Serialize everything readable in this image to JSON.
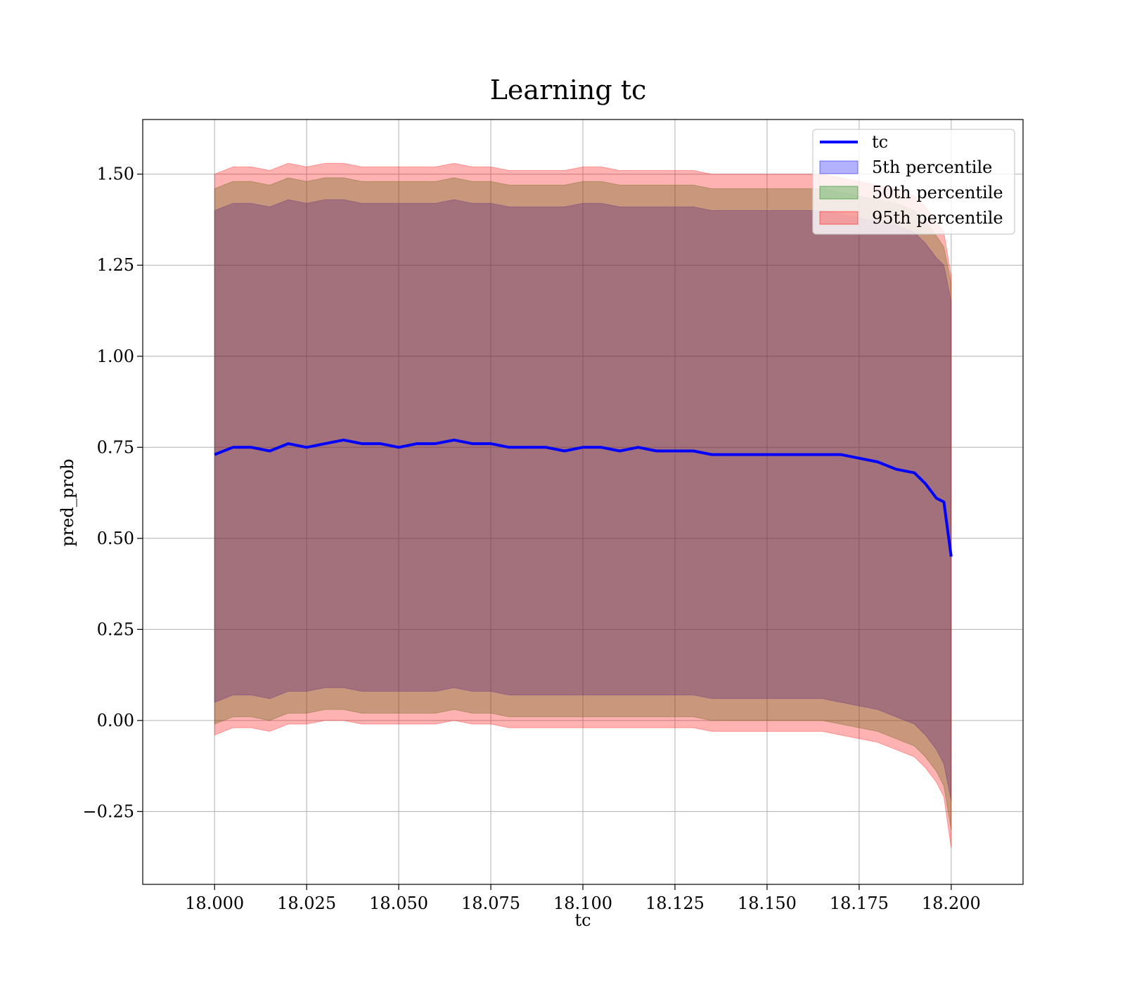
{
  "chart_data": {
    "type": "line",
    "title": "Learning tc",
    "xlabel": "tc",
    "ylabel": "pred_prob",
    "xlim": [
      17.9805,
      18.2195
    ],
    "ylim": [
      -0.45,
      1.65
    ],
    "grid": true,
    "legend_position": "top-right",
    "x_ticks": [
      18.0,
      18.025,
      18.05,
      18.075,
      18.1,
      18.125,
      18.15,
      18.175,
      18.2
    ],
    "x_tick_labels": [
      "18.000",
      "18.025",
      "18.050",
      "18.075",
      "18.100",
      "18.125",
      "18.150",
      "18.175",
      "18.200"
    ],
    "y_ticks": [
      -0.25,
      0.0,
      0.25,
      0.5,
      0.75,
      1.0,
      1.25,
      1.5
    ],
    "y_tick_labels": [
      "−0.25",
      "0.00",
      "0.25",
      "0.50",
      "0.75",
      "1.00",
      "1.25",
      "1.50"
    ],
    "x": [
      18.0,
      18.005,
      18.01,
      18.015,
      18.02,
      18.025,
      18.03,
      18.035,
      18.04,
      18.045,
      18.05,
      18.055,
      18.06,
      18.065,
      18.07,
      18.075,
      18.08,
      18.085,
      18.09,
      18.095,
      18.1,
      18.105,
      18.11,
      18.115,
      18.12,
      18.125,
      18.13,
      18.135,
      18.14,
      18.145,
      18.15,
      18.155,
      18.16,
      18.165,
      18.17,
      18.175,
      18.18,
      18.185,
      18.19,
      18.193,
      18.196,
      18.198,
      18.2
    ],
    "series": [
      {
        "name": "tc",
        "kind": "line",
        "color": "#0000ff",
        "values": [
          0.73,
          0.75,
          0.75,
          0.74,
          0.76,
          0.75,
          0.76,
          0.77,
          0.76,
          0.76,
          0.75,
          0.76,
          0.76,
          0.77,
          0.76,
          0.76,
          0.75,
          0.75,
          0.75,
          0.74,
          0.75,
          0.75,
          0.74,
          0.75,
          0.74,
          0.74,
          0.74,
          0.73,
          0.73,
          0.73,
          0.73,
          0.73,
          0.73,
          0.73,
          0.73,
          0.72,
          0.71,
          0.69,
          0.68,
          0.65,
          0.61,
          0.6,
          0.45
        ]
      },
      {
        "name": "5th percentile",
        "kind": "band",
        "color": "#0000ff",
        "opacity": 0.3,
        "upper": [
          1.4,
          1.42,
          1.42,
          1.41,
          1.43,
          1.42,
          1.43,
          1.43,
          1.42,
          1.42,
          1.42,
          1.42,
          1.42,
          1.43,
          1.42,
          1.42,
          1.41,
          1.41,
          1.41,
          1.41,
          1.42,
          1.42,
          1.41,
          1.41,
          1.41,
          1.41,
          1.41,
          1.4,
          1.4,
          1.4,
          1.4,
          1.4,
          1.4,
          1.4,
          1.39,
          1.38,
          1.37,
          1.36,
          1.34,
          1.31,
          1.27,
          1.25,
          1.15
        ],
        "lower": [
          0.05,
          0.07,
          0.07,
          0.06,
          0.08,
          0.08,
          0.09,
          0.09,
          0.08,
          0.08,
          0.08,
          0.08,
          0.08,
          0.09,
          0.08,
          0.08,
          0.07,
          0.07,
          0.07,
          0.07,
          0.07,
          0.07,
          0.07,
          0.07,
          0.07,
          0.07,
          0.07,
          0.06,
          0.06,
          0.06,
          0.06,
          0.06,
          0.06,
          0.06,
          0.05,
          0.04,
          0.03,
          0.01,
          -0.01,
          -0.04,
          -0.08,
          -0.12,
          -0.22
        ]
      },
      {
        "name": "50th percentile",
        "kind": "band",
        "color": "#008000",
        "opacity": 0.3,
        "upper": [
          1.46,
          1.48,
          1.48,
          1.47,
          1.49,
          1.48,
          1.49,
          1.49,
          1.48,
          1.48,
          1.48,
          1.48,
          1.48,
          1.49,
          1.48,
          1.48,
          1.47,
          1.47,
          1.47,
          1.47,
          1.48,
          1.48,
          1.47,
          1.47,
          1.47,
          1.47,
          1.47,
          1.46,
          1.46,
          1.46,
          1.46,
          1.46,
          1.46,
          1.46,
          1.45,
          1.44,
          1.43,
          1.42,
          1.4,
          1.37,
          1.33,
          1.3,
          1.2
        ],
        "lower": [
          -0.01,
          0.01,
          0.01,
          0.0,
          0.02,
          0.02,
          0.03,
          0.03,
          0.02,
          0.02,
          0.02,
          0.02,
          0.02,
          0.03,
          0.02,
          0.02,
          0.01,
          0.01,
          0.01,
          0.01,
          0.01,
          0.01,
          0.01,
          0.01,
          0.01,
          0.01,
          0.01,
          0.0,
          0.0,
          0.0,
          0.0,
          0.0,
          0.0,
          0.0,
          -0.01,
          -0.02,
          -0.03,
          -0.05,
          -0.07,
          -0.1,
          -0.14,
          -0.18,
          -0.3
        ]
      },
      {
        "name": "95th percentile",
        "kind": "band",
        "color": "#ff0000",
        "opacity": 0.3,
        "upper": [
          1.5,
          1.52,
          1.52,
          1.51,
          1.53,
          1.52,
          1.53,
          1.53,
          1.52,
          1.52,
          1.52,
          1.52,
          1.52,
          1.53,
          1.52,
          1.52,
          1.51,
          1.51,
          1.51,
          1.51,
          1.52,
          1.52,
          1.51,
          1.51,
          1.51,
          1.51,
          1.51,
          1.5,
          1.5,
          1.5,
          1.5,
          1.5,
          1.5,
          1.5,
          1.49,
          1.48,
          1.47,
          1.46,
          1.44,
          1.41,
          1.37,
          1.34,
          1.22
        ],
        "lower": [
          -0.04,
          -0.02,
          -0.02,
          -0.03,
          -0.01,
          -0.01,
          0.0,
          0.0,
          -0.01,
          -0.01,
          -0.01,
          -0.01,
          -0.01,
          0.0,
          -0.01,
          -0.01,
          -0.02,
          -0.02,
          -0.02,
          -0.02,
          -0.02,
          -0.02,
          -0.02,
          -0.02,
          -0.02,
          -0.02,
          -0.02,
          -0.03,
          -0.03,
          -0.03,
          -0.03,
          -0.03,
          -0.03,
          -0.03,
          -0.04,
          -0.05,
          -0.06,
          -0.08,
          -0.1,
          -0.13,
          -0.17,
          -0.21,
          -0.35
        ]
      }
    ]
  }
}
